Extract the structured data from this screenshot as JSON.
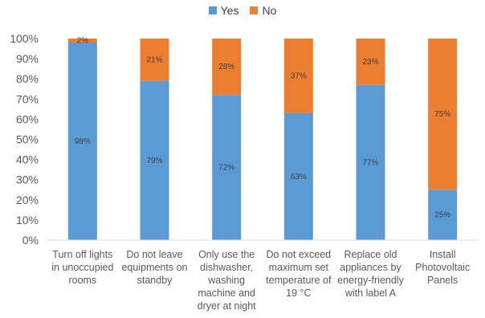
{
  "chart_data": {
    "type": "bar",
    "stacked": true,
    "title": "",
    "xlabel": "",
    "ylabel": "",
    "ylim": [
      0,
      100
    ],
    "yticks": [
      "0%",
      "10%",
      "20%",
      "30%",
      "40%",
      "50%",
      "60%",
      "70%",
      "80%",
      "90%",
      "100%"
    ],
    "grid": false,
    "legend_position": "top-center",
    "categories": [
      [
        "Turn off lights",
        "in unoccupied",
        "rooms"
      ],
      [
        "Do not leave",
        "equipments on",
        "standby"
      ],
      [
        "Only use the",
        "dishwasher,",
        "washing",
        "machine and",
        "dryer at night"
      ],
      [
        "Do not exceed",
        "maximum set",
        "temperature of",
        "19 °C"
      ],
      [
        "Replace old",
        "appliances by",
        "energy-friendly",
        "with label A"
      ],
      [
        "Install",
        "Photovoltaic",
        "Panels"
      ]
    ],
    "series": [
      {
        "name": "Yes",
        "color": "#5B9BD5",
        "values": [
          98,
          79,
          72,
          63,
          77,
          25
        ],
        "labels": [
          "98%",
          "79%",
          "72%",
          "63%",
          "77%",
          "25%"
        ]
      },
      {
        "name": "No",
        "color": "#ED7D31",
        "values": [
          2,
          21,
          28,
          37,
          23,
          75
        ],
        "labels": [
          "2%",
          "21%",
          "28%",
          "37%",
          "23%",
          "75%"
        ]
      }
    ]
  }
}
